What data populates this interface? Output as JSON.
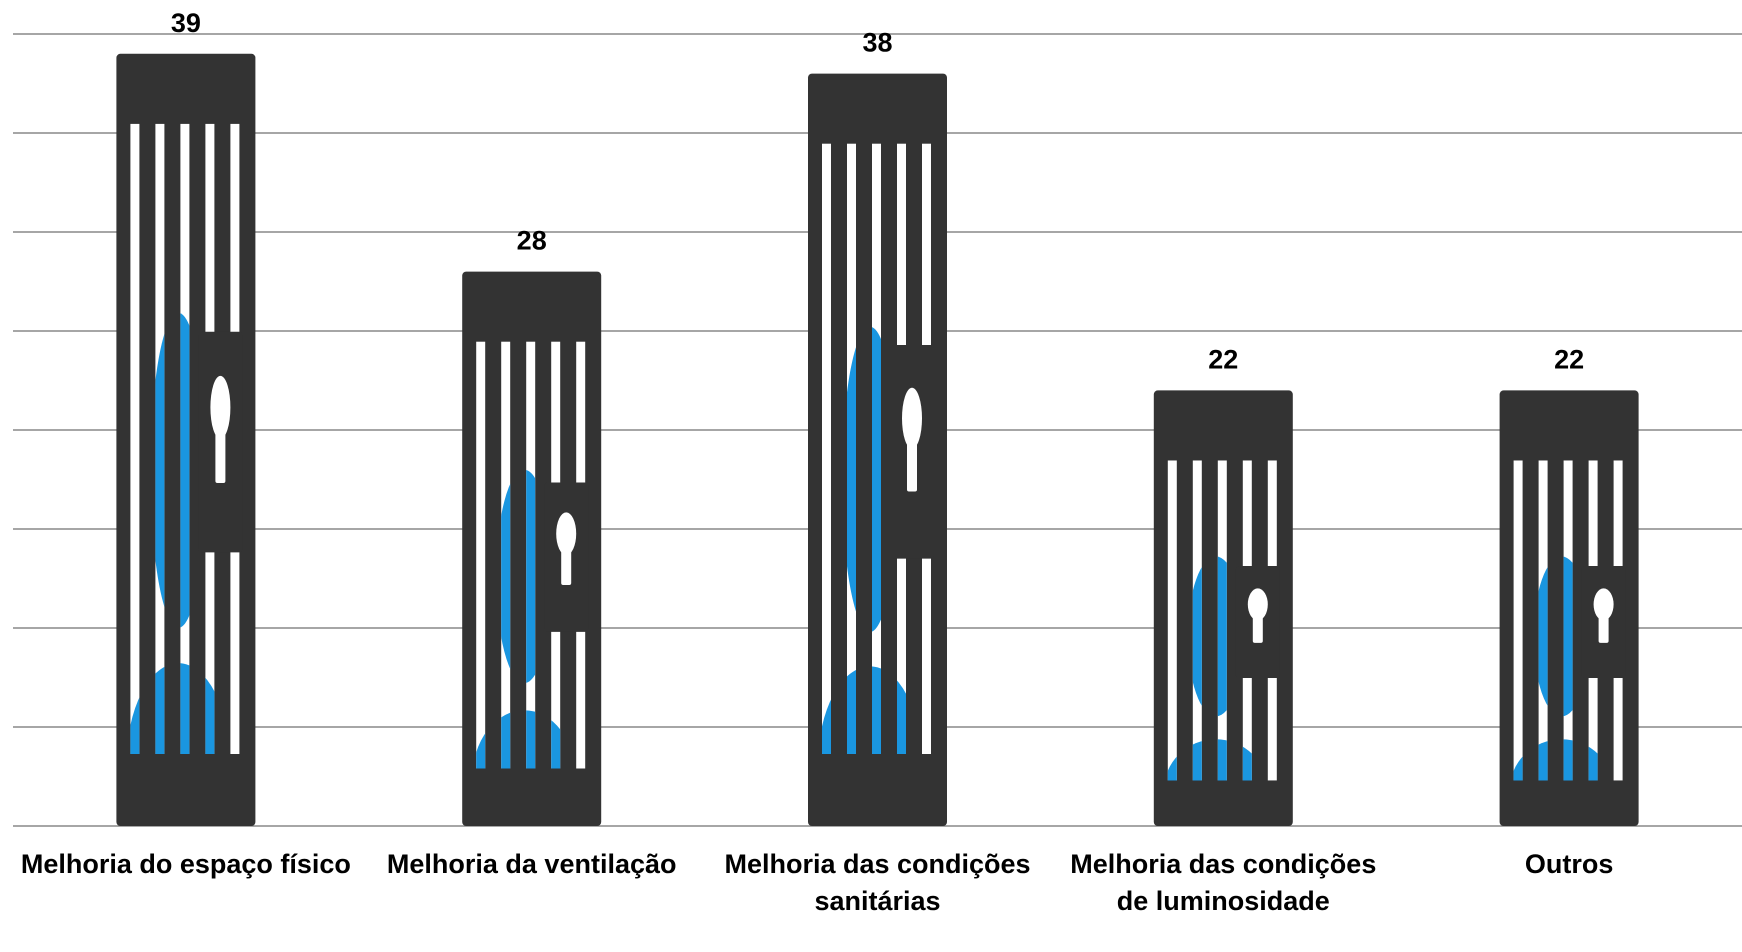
{
  "chart_data": {
    "type": "bar",
    "categories": [
      "Melhoria do espaço físico",
      "Melhoria da ventilação",
      "Melhoria das condições sanitárias",
      "Melhoria das condições de luminosidade",
      "Outros"
    ],
    "values": [
      39,
      28,
      38,
      22,
      22
    ],
    "color": "#333333",
    "ylim": [
      0,
      40
    ],
    "yticks": [
      0,
      5,
      10,
      15,
      20,
      25,
      30,
      35,
      40
    ],
    "grid": true
  }
}
